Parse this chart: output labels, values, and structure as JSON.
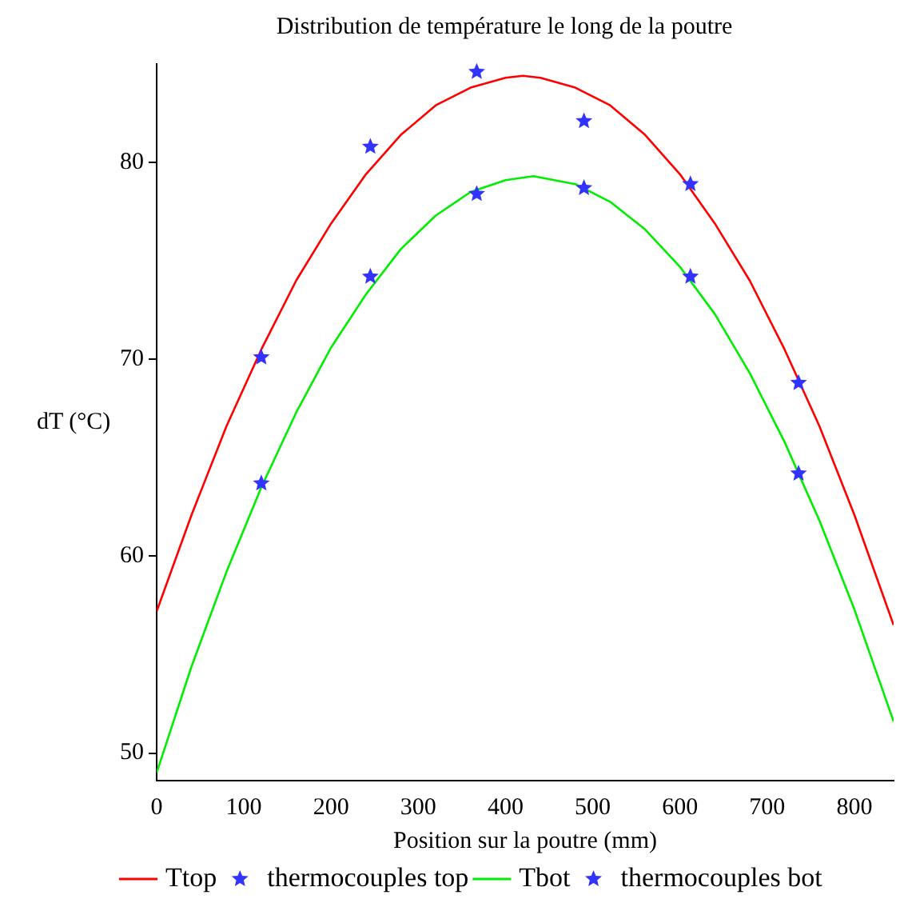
{
  "chart_data": {
    "type": "line",
    "title": "Distribution de température le long de la poutre",
    "xlabel": "Position sur la poutre (mm)",
    "ylabel": "dT (°C)",
    "xlim": [
      0,
      845
    ],
    "xticks": [
      0,
      100,
      200,
      300,
      400,
      500,
      600,
      700,
      800
    ],
    "ylim": [
      48.6,
      85
    ],
    "yticks": [
      50,
      60,
      70,
      80
    ],
    "grid": false,
    "legend": "bottom",
    "series": [
      {
        "name": "Ttop",
        "type": "line",
        "color": "#ff0000",
        "marker": "none",
        "x": [
          0,
          40,
          80,
          120,
          160,
          200,
          240,
          280,
          320,
          360,
          400,
          420,
          440,
          480,
          520,
          560,
          600,
          640,
          680,
          720,
          760,
          800,
          845
        ],
        "values": [
          57.2,
          62.1,
          66.6,
          70.5,
          74.0,
          76.9,
          79.4,
          81.4,
          82.9,
          83.8,
          84.3,
          84.4,
          84.3,
          83.8,
          82.9,
          81.4,
          79.4,
          76.9,
          74.0,
          70.5,
          66.6,
          62.1,
          56.5
        ]
      },
      {
        "name": "thermocouples top",
        "type": "scatter",
        "color": "#3333ff",
        "marker": "star",
        "x": [
          120,
          245,
          367,
          490,
          612,
          736
        ],
        "values": [
          70.1,
          80.8,
          84.6,
          82.1,
          78.9,
          68.8
        ]
      },
      {
        "name": "Tbot",
        "type": "line",
        "color": "#00ee00",
        "marker": "none",
        "x": [
          0,
          40,
          80,
          120,
          160,
          200,
          240,
          280,
          320,
          360,
          400,
          432,
          480,
          520,
          560,
          600,
          640,
          680,
          720,
          760,
          800,
          845
        ],
        "values": [
          49.0,
          54.4,
          59.2,
          63.5,
          67.3,
          70.6,
          73.3,
          75.6,
          77.3,
          78.5,
          79.1,
          79.3,
          78.9,
          78.0,
          76.6,
          74.7,
          72.3,
          69.3,
          65.8,
          61.8,
          57.3,
          51.6
        ]
      },
      {
        "name": "thermocouples bot",
        "type": "scatter",
        "color": "#3333ff",
        "marker": "star",
        "x": [
          120,
          245,
          367,
          490,
          612,
          736
        ],
        "values": [
          63.7,
          74.2,
          78.4,
          78.7,
          74.2,
          64.2
        ]
      }
    ]
  }
}
